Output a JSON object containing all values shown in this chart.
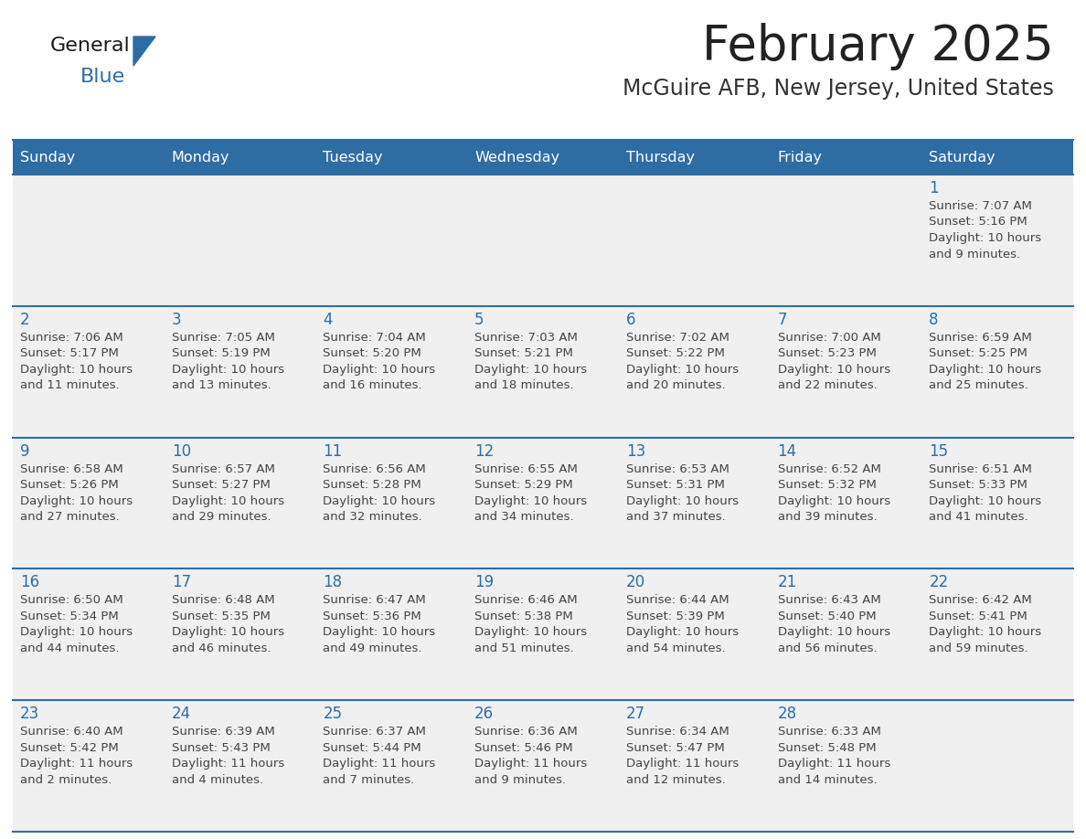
{
  "title": "February 2025",
  "subtitle": "McGuire AFB, New Jersey, United States",
  "days_of_week": [
    "Sunday",
    "Monday",
    "Tuesday",
    "Wednesday",
    "Thursday",
    "Friday",
    "Saturday"
  ],
  "header_bg": "#2E6DA4",
  "header_text": "#FFFFFF",
  "cell_bg": "#F0F0F0",
  "line_color": "#2E6DA4",
  "day_number_color": "#2E6DA4",
  "cell_text_color": "#444444",
  "title_color": "#222222",
  "subtitle_color": "#333333",
  "logo_general_color": "#1a1a1a",
  "logo_blue_color": "#2E6DA4",
  "calendar": [
    [
      null,
      null,
      null,
      null,
      null,
      null,
      {
        "day": 1,
        "sunrise": "7:07 AM",
        "sunset": "5:16 PM",
        "daylight_line1": "Daylight: 10 hours",
        "daylight_line2": "and 9 minutes."
      }
    ],
    [
      {
        "day": 2,
        "sunrise": "7:06 AM",
        "sunset": "5:17 PM",
        "daylight_line1": "Daylight: 10 hours",
        "daylight_line2": "and 11 minutes."
      },
      {
        "day": 3,
        "sunrise": "7:05 AM",
        "sunset": "5:19 PM",
        "daylight_line1": "Daylight: 10 hours",
        "daylight_line2": "and 13 minutes."
      },
      {
        "day": 4,
        "sunrise": "7:04 AM",
        "sunset": "5:20 PM",
        "daylight_line1": "Daylight: 10 hours",
        "daylight_line2": "and 16 minutes."
      },
      {
        "day": 5,
        "sunrise": "7:03 AM",
        "sunset": "5:21 PM",
        "daylight_line1": "Daylight: 10 hours",
        "daylight_line2": "and 18 minutes."
      },
      {
        "day": 6,
        "sunrise": "7:02 AM",
        "sunset": "5:22 PM",
        "daylight_line1": "Daylight: 10 hours",
        "daylight_line2": "and 20 minutes."
      },
      {
        "day": 7,
        "sunrise": "7:00 AM",
        "sunset": "5:23 PM",
        "daylight_line1": "Daylight: 10 hours",
        "daylight_line2": "and 22 minutes."
      },
      {
        "day": 8,
        "sunrise": "6:59 AM",
        "sunset": "5:25 PM",
        "daylight_line1": "Daylight: 10 hours",
        "daylight_line2": "and 25 minutes."
      }
    ],
    [
      {
        "day": 9,
        "sunrise": "6:58 AM",
        "sunset": "5:26 PM",
        "daylight_line1": "Daylight: 10 hours",
        "daylight_line2": "and 27 minutes."
      },
      {
        "day": 10,
        "sunrise": "6:57 AM",
        "sunset": "5:27 PM",
        "daylight_line1": "Daylight: 10 hours",
        "daylight_line2": "and 29 minutes."
      },
      {
        "day": 11,
        "sunrise": "6:56 AM",
        "sunset": "5:28 PM",
        "daylight_line1": "Daylight: 10 hours",
        "daylight_line2": "and 32 minutes."
      },
      {
        "day": 12,
        "sunrise": "6:55 AM",
        "sunset": "5:29 PM",
        "daylight_line1": "Daylight: 10 hours",
        "daylight_line2": "and 34 minutes."
      },
      {
        "day": 13,
        "sunrise": "6:53 AM",
        "sunset": "5:31 PM",
        "daylight_line1": "Daylight: 10 hours",
        "daylight_line2": "and 37 minutes."
      },
      {
        "day": 14,
        "sunrise": "6:52 AM",
        "sunset": "5:32 PM",
        "daylight_line1": "Daylight: 10 hours",
        "daylight_line2": "and 39 minutes."
      },
      {
        "day": 15,
        "sunrise": "6:51 AM",
        "sunset": "5:33 PM",
        "daylight_line1": "Daylight: 10 hours",
        "daylight_line2": "and 41 minutes."
      }
    ],
    [
      {
        "day": 16,
        "sunrise": "6:50 AM",
        "sunset": "5:34 PM",
        "daylight_line1": "Daylight: 10 hours",
        "daylight_line2": "and 44 minutes."
      },
      {
        "day": 17,
        "sunrise": "6:48 AM",
        "sunset": "5:35 PM",
        "daylight_line1": "Daylight: 10 hours",
        "daylight_line2": "and 46 minutes."
      },
      {
        "day": 18,
        "sunrise": "6:47 AM",
        "sunset": "5:36 PM",
        "daylight_line1": "Daylight: 10 hours",
        "daylight_line2": "and 49 minutes."
      },
      {
        "day": 19,
        "sunrise": "6:46 AM",
        "sunset": "5:38 PM",
        "daylight_line1": "Daylight: 10 hours",
        "daylight_line2": "and 51 minutes."
      },
      {
        "day": 20,
        "sunrise": "6:44 AM",
        "sunset": "5:39 PM",
        "daylight_line1": "Daylight: 10 hours",
        "daylight_line2": "and 54 minutes."
      },
      {
        "day": 21,
        "sunrise": "6:43 AM",
        "sunset": "5:40 PM",
        "daylight_line1": "Daylight: 10 hours",
        "daylight_line2": "and 56 minutes."
      },
      {
        "day": 22,
        "sunrise": "6:42 AM",
        "sunset": "5:41 PM",
        "daylight_line1": "Daylight: 10 hours",
        "daylight_line2": "and 59 minutes."
      }
    ],
    [
      {
        "day": 23,
        "sunrise": "6:40 AM",
        "sunset": "5:42 PM",
        "daylight_line1": "Daylight: 11 hours",
        "daylight_line2": "and 2 minutes."
      },
      {
        "day": 24,
        "sunrise": "6:39 AM",
        "sunset": "5:43 PM",
        "daylight_line1": "Daylight: 11 hours",
        "daylight_line2": "and 4 minutes."
      },
      {
        "day": 25,
        "sunrise": "6:37 AM",
        "sunset": "5:44 PM",
        "daylight_line1": "Daylight: 11 hours",
        "daylight_line2": "and 7 minutes."
      },
      {
        "day": 26,
        "sunrise": "6:36 AM",
        "sunset": "5:46 PM",
        "daylight_line1": "Daylight: 11 hours",
        "daylight_line2": "and 9 minutes."
      },
      {
        "day": 27,
        "sunrise": "6:34 AM",
        "sunset": "5:47 PM",
        "daylight_line1": "Daylight: 11 hours",
        "daylight_line2": "and 12 minutes."
      },
      {
        "day": 28,
        "sunrise": "6:33 AM",
        "sunset": "5:48 PM",
        "daylight_line1": "Daylight: 11 hours",
        "daylight_line2": "and 14 minutes."
      },
      null
    ]
  ]
}
